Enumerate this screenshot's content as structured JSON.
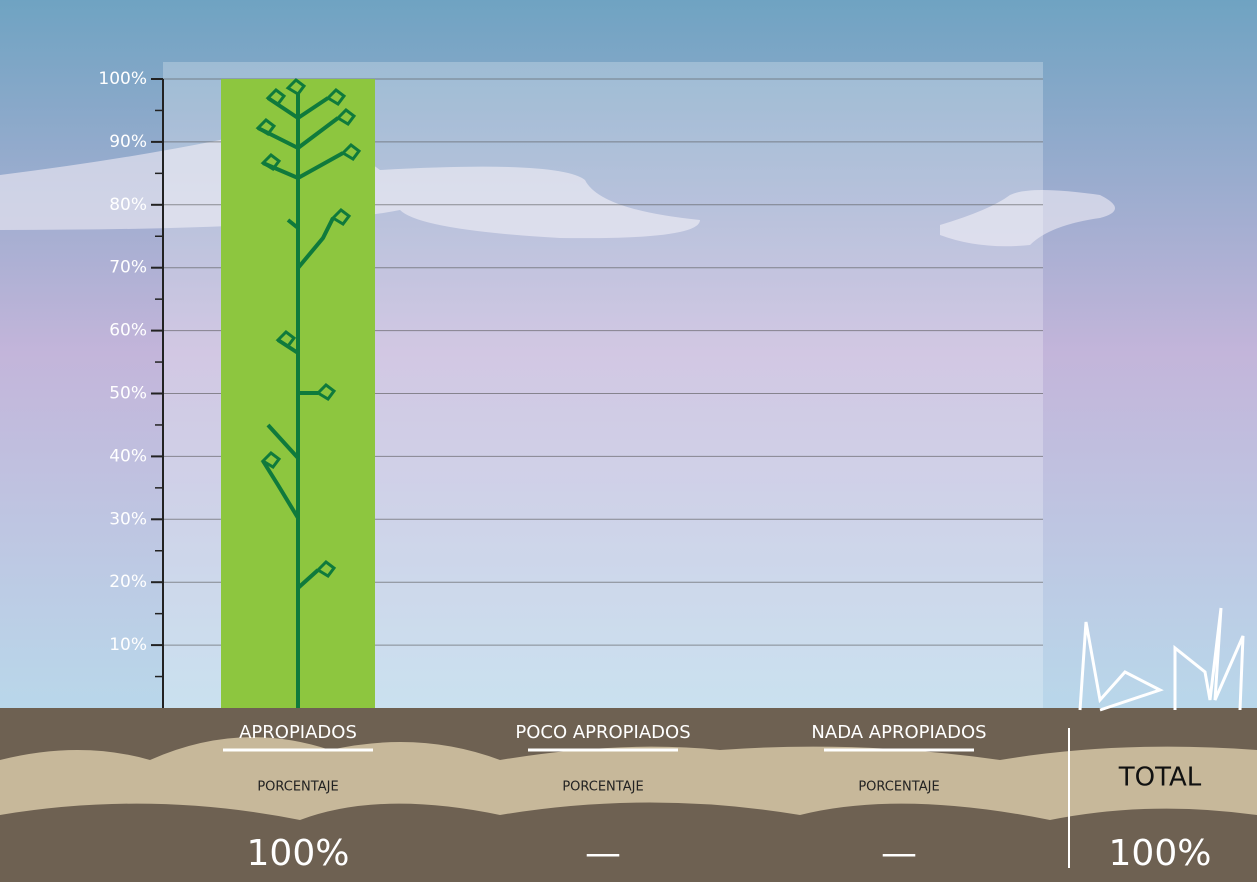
{
  "chart_data": {
    "type": "bar",
    "categories": [
      "APROPIADOS",
      "POCO APROPIADOS",
      "NADA APROPIADOS"
    ],
    "sublabels": [
      "PORCENTAJE",
      "PORCENTAJE",
      "PORCENTAJE"
    ],
    "values": [
      100,
      null,
      null
    ],
    "value_labels": [
      "100%",
      "—",
      "—"
    ],
    "color": "#8dc63f",
    "ylim": [
      0,
      100
    ],
    "yticks": [
      {
        "value": 10,
        "label": "10%"
      },
      {
        "value": 20,
        "label": "20%"
      },
      {
        "value": 30,
        "label": "30%"
      },
      {
        "value": 40,
        "label": "40%"
      },
      {
        "value": 50,
        "label": "50%"
      },
      {
        "value": 60,
        "label": "60%"
      },
      {
        "value": 70,
        "label": "70%"
      },
      {
        "value": 80,
        "label": "80%"
      },
      {
        "value": 90,
        "label": "90%"
      },
      {
        "value": 100,
        "label": "100%"
      }
    ],
    "minor_yticks": [
      5,
      15,
      25,
      35,
      45,
      55,
      65,
      75,
      85,
      95
    ],
    "grid": true,
    "total_label": "TOTAL",
    "total": "100%"
  }
}
